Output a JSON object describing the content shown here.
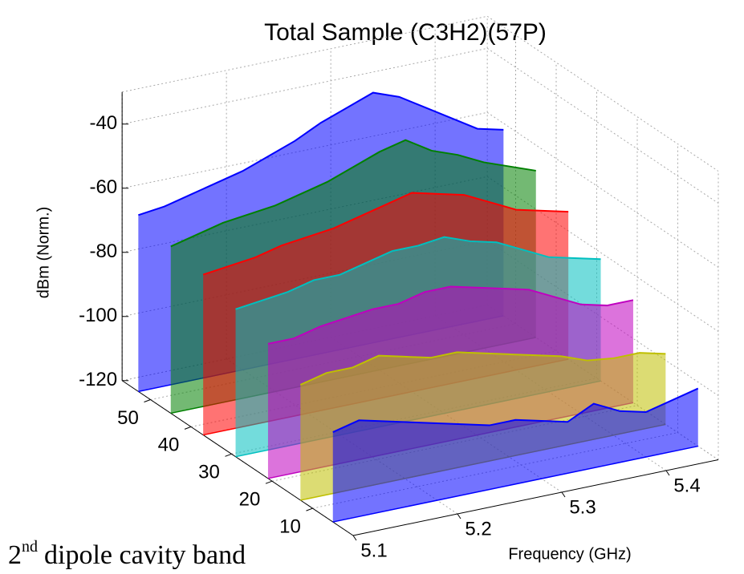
{
  "chart_data": {
    "type": "waterfall3d",
    "title": "Total Sample (C3H2)(57P)",
    "zlabel": "dBm (Norm.)",
    "xlabel": "Frequency (GHz)",
    "annotation": {
      "number": "2",
      "superscript": "nd",
      "text": "dipole cavity band"
    },
    "x": [
      5.1,
      5.125,
      5.15,
      5.175,
      5.2,
      5.225,
      5.25,
      5.275,
      5.3,
      5.325,
      5.35,
      5.375,
      5.4,
      5.425,
      5.45
    ],
    "xlim": [
      5.1,
      5.45
    ],
    "xticks": [
      5.1,
      5.2,
      5.3,
      5.4
    ],
    "ylim": [
      0,
      57
    ],
    "yticks": [
      10,
      20,
      30,
      40,
      50
    ],
    "zlim": [
      -120,
      -30
    ],
    "zticks": [
      -40,
      -60,
      -80,
      -100,
      -120
    ],
    "grid": true,
    "traces": [
      {
        "n": 53,
        "color": "#0000ff",
        "values": [
          -65,
          -64,
          -62,
          -60,
          -58,
          -55,
          -52,
          -48,
          -45,
          -42,
          -45,
          -50,
          -55,
          -60,
          -62
        ]
      },
      {
        "n": 45,
        "color": "#008000",
        "values": [
          -68,
          -66,
          -64,
          -63,
          -62,
          -60,
          -58,
          -55,
          -52,
          -50,
          -55,
          -58,
          -62,
          -65,
          -68
        ]
      },
      {
        "n": 37,
        "color": "#ff0000",
        "values": [
          -70,
          -69,
          -68,
          -66,
          -65,
          -64,
          -62,
          -60,
          -58,
          -60,
          -62,
          -66,
          -70,
          -72,
          -74
        ]
      },
      {
        "n": 29,
        "color": "#00bfbf",
        "values": [
          -74,
          -73,
          -72,
          -70,
          -70,
          -68,
          -66,
          -66,
          -65,
          -68,
          -70,
          -74,
          -78,
          -80,
          -82
        ]
      },
      {
        "n": 21,
        "color": "#bf00bf",
        "values": [
          -78,
          -78,
          -76,
          -75,
          -74,
          -74,
          -72,
          -72,
          -74,
          -76,
          -78,
          -82,
          -86,
          -88,
          -88
        ]
      },
      {
        "n": 13,
        "color": "#bfbf00",
        "values": [
          -84,
          -82,
          -82,
          -80,
          -82,
          -84,
          -84,
          -86,
          -88,
          -90,
          -92,
          -95,
          -96,
          -96,
          -98
        ]
      },
      {
        "n": 5,
        "color": "#0000ff",
        "values": [
          -92,
          -90,
          -92,
          -94,
          -96,
          -98,
          -100,
          -100,
          -102,
          -104,
          -100,
          -104,
          -106,
          -104,
          -102
        ]
      }
    ]
  }
}
